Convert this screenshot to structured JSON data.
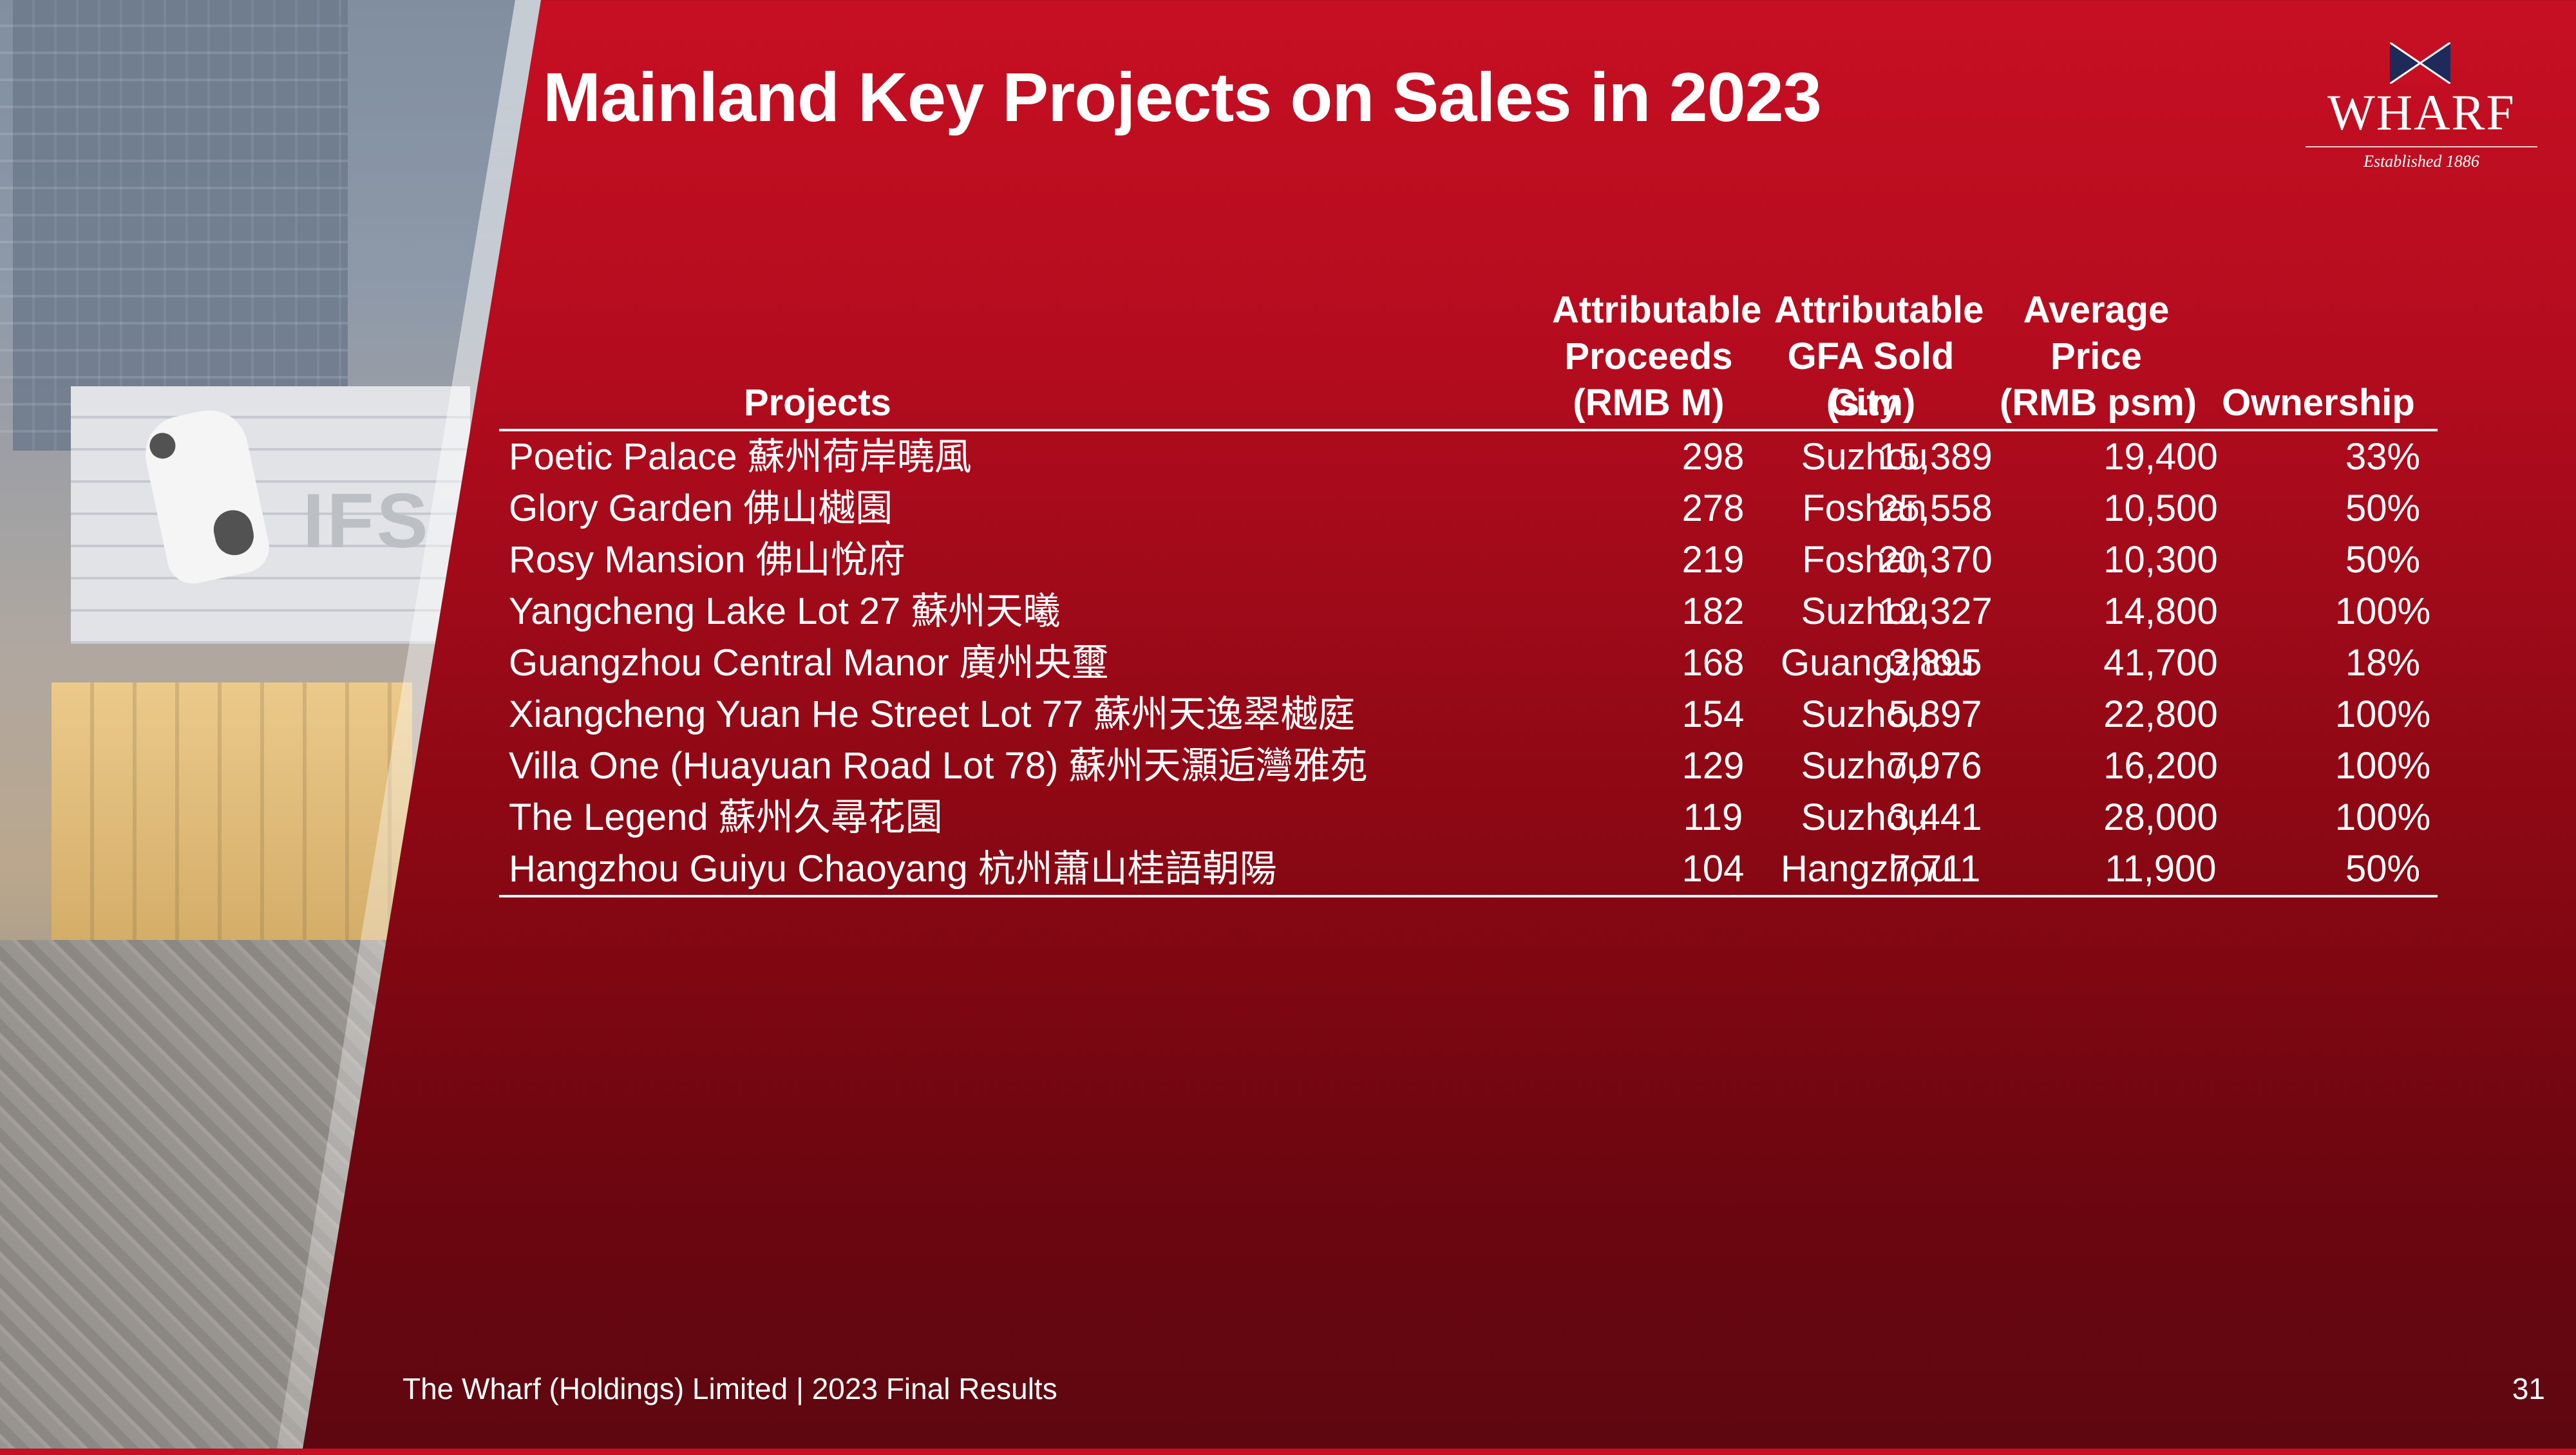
{
  "slide": {
    "title": "Mainland Key Projects on Sales in 2023",
    "footer": "The Wharf (Holdings) Limited | 2023 Final Results",
    "page_number": "31"
  },
  "logo": {
    "name": "WHARF",
    "tagline": "Established 1886"
  },
  "photo": {
    "sign_text": "IFS"
  },
  "table": {
    "headers": {
      "projects": "Projects",
      "city": "City",
      "proceeds": [
        "Attributable",
        "Proceeds",
        "(RMB M)"
      ],
      "gfa": [
        "Attributable",
        "GFA Sold",
        "(s.m)"
      ],
      "avg_price": [
        "Average",
        "Price",
        "(RMB psm)"
      ],
      "ownership": "Ownership"
    },
    "rows": [
      {
        "project": "Poetic Palace 蘇州荷岸曉風",
        "city": "Suzhou",
        "proceeds": "298",
        "gfa": "15,389",
        "avg_price": "19,400",
        "ownership": "33%"
      },
      {
        "project": "Glory Garden 佛山樾園",
        "city": "Foshan",
        "proceeds": "278",
        "gfa": "25,558",
        "avg_price": "10,500",
        "ownership": "50%"
      },
      {
        "project": "Rosy Mansion 佛山悅府",
        "city": "Foshan",
        "proceeds": "219",
        "gfa": "20,370",
        "avg_price": "10,300",
        "ownership": "50%"
      },
      {
        "project": "Yangcheng Lake Lot 27 蘇州天曦",
        "city": "Suzhou",
        "proceeds": "182",
        "gfa": "12,327",
        "avg_price": "14,800",
        "ownership": "100%"
      },
      {
        "project": "Guangzhou Central Manor 廣州央璽",
        "city": "Guangzhou",
        "proceeds": "168",
        "gfa": "3,895",
        "avg_price": "41,700",
        "ownership": "18%"
      },
      {
        "project": "Xiangcheng Yuan He Street Lot 77 蘇州天逸翠樾庭",
        "city": "Suzhou",
        "proceeds": "154",
        "gfa": "5,897",
        "avg_price": "22,800",
        "ownership": "100%"
      },
      {
        "project": "Villa One (Huayuan Road Lot 78) 蘇州天灝逅灣雅苑",
        "city": "Suzhou",
        "proceeds": "129",
        "gfa": "7,976",
        "avg_price": "16,200",
        "ownership": "100%"
      },
      {
        "project": "The Legend 蘇州久尋花園",
        "city": "Suzhou",
        "proceeds": "119",
        "gfa": "3,441",
        "avg_price": "28,000",
        "ownership": "100%"
      },
      {
        "project": "Hangzhou Guiyu Chaoyang 杭州蕭山桂語朝陽",
        "city": "Hangzhou",
        "proceeds": "104",
        "gfa": "7,711",
        "avg_price": "11,900",
        "ownership": "50%"
      }
    ]
  }
}
